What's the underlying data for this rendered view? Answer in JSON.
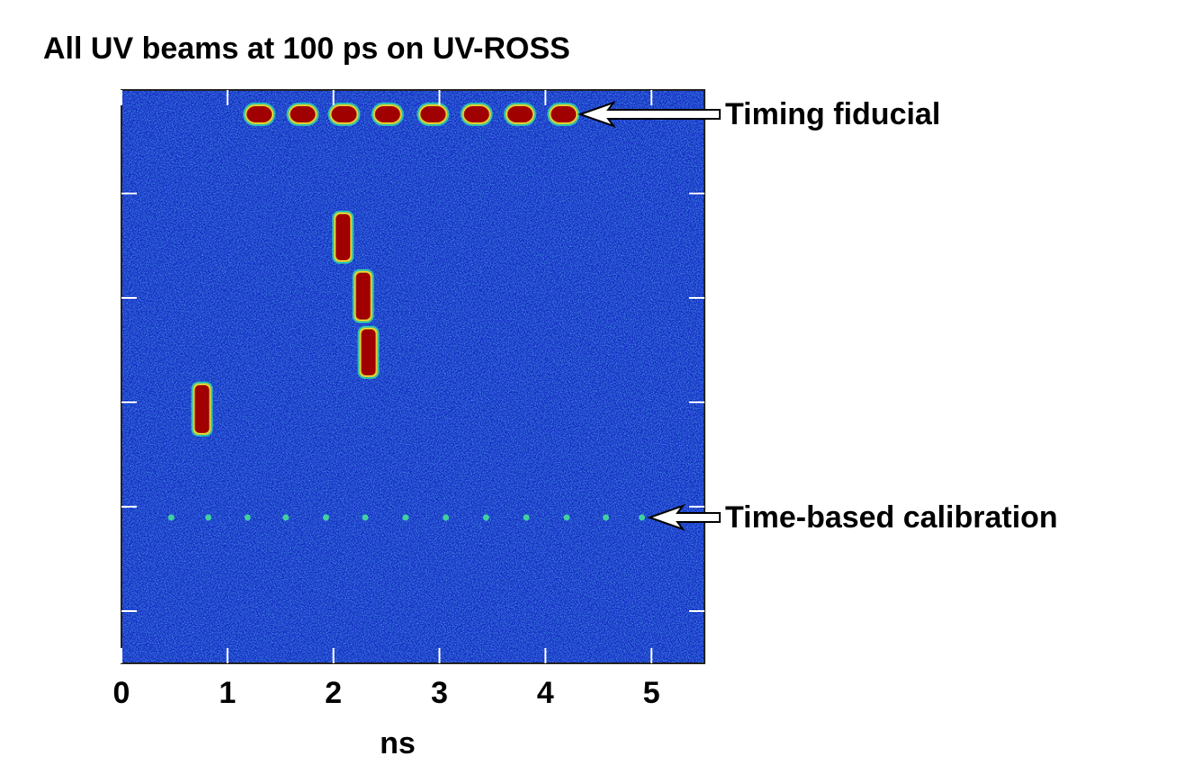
{
  "chart_data": {
    "type": "streak",
    "title": "All UV beams at 100 ps on UV-ROSS",
    "xlabel": "ns",
    "xlim": [
      0,
      5.5
    ],
    "xticks": [
      0,
      1,
      2,
      3,
      4,
      5
    ],
    "annotations": [
      "Timing fiducial",
      "Time-based calibration"
    ],
    "fiducial": [
      1.3,
      1.71,
      2.1,
      2.51,
      2.94,
      3.35,
      3.76,
      4.17
    ],
    "calibration": [
      0.47,
      0.82,
      1.19,
      1.55,
      1.93,
      2.3,
      2.68,
      3.06,
      3.44,
      3.82,
      4.2,
      4.57,
      4.91
    ],
    "beams": [
      2.09,
      2.28,
      2.33,
      0.76
    ]
  }
}
